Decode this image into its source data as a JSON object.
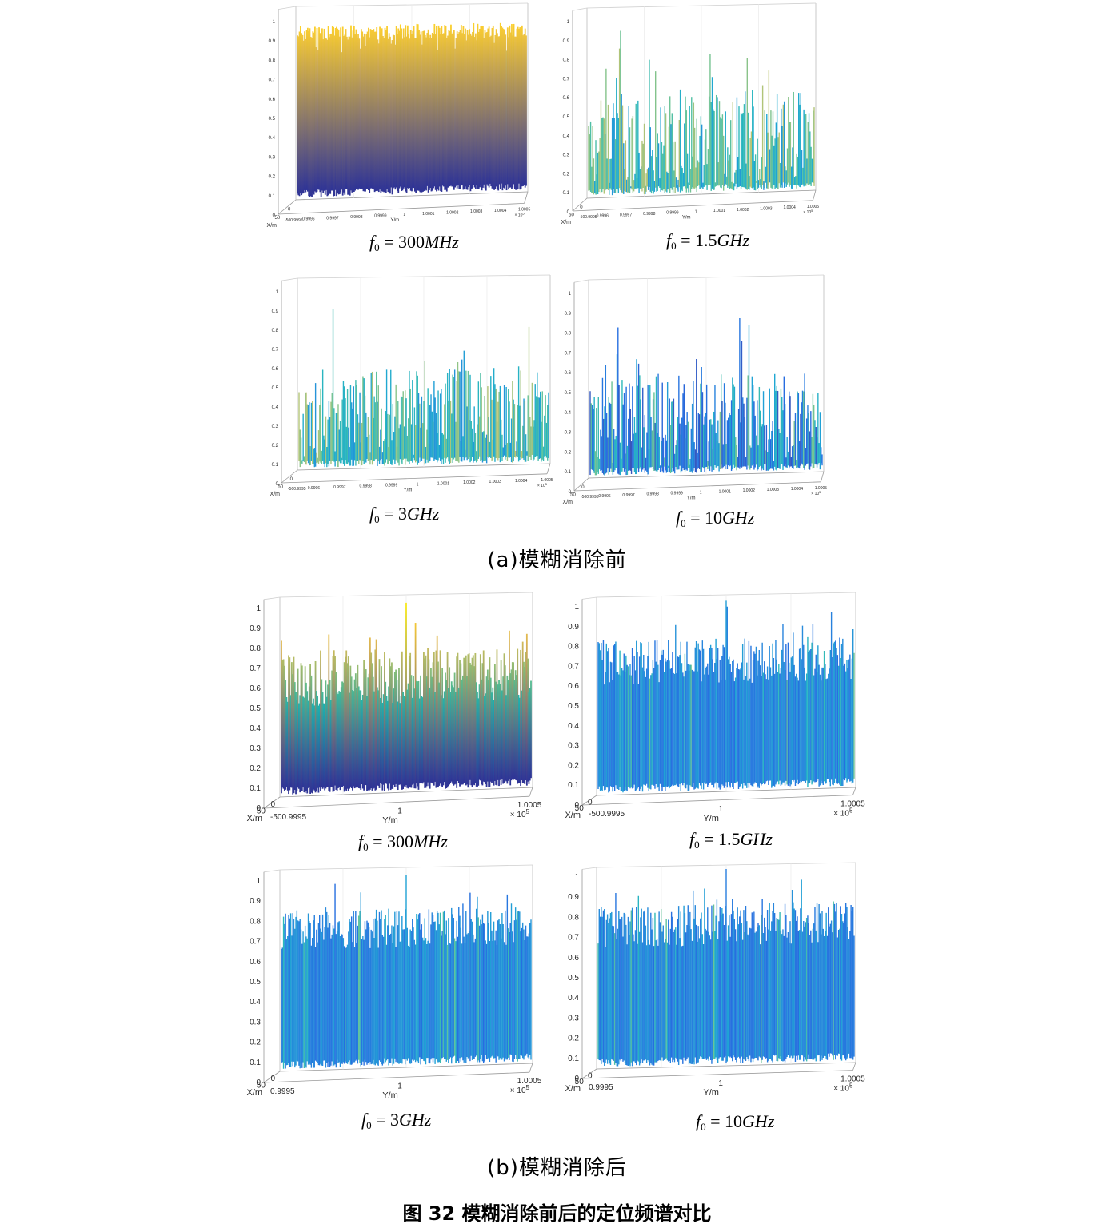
{
  "chart_data": [
    {
      "type": "surface3d",
      "group": "a",
      "freq_var": "f",
      "freq_sub": "0",
      "freq_value": "300",
      "freq_unit": "MHz",
      "xlabel": "X/m",
      "ylabel": "Y/m",
      "zlim": [
        0,
        1
      ],
      "z_ticks": [
        "0",
        "0.1",
        "0.2",
        "0.3",
        "0.4",
        "0.5",
        "0.6",
        "0.7",
        "0.8",
        "0.9",
        "1"
      ],
      "x_ticks": [
        "50",
        "0"
      ],
      "y_ticks": [
        "-500.9995",
        "0.9996",
        "0.9997",
        "0.9998",
        "0.9999",
        "1",
        "1.0001",
        "1.0002",
        "1.0003",
        "1.0004",
        "1.0005"
      ],
      "y_exponent": "× 10",
      "y_exp_power": "5",
      "floor": 0.08,
      "peak": 0.96,
      "peak_pos": null,
      "colormap": "parula-smooth"
    },
    {
      "type": "surface3d",
      "group": "a",
      "freq_var": "f",
      "freq_sub": "0",
      "freq_value": "1.5",
      "freq_unit": "GHz",
      "xlabel": "X/m",
      "ylabel": "Y/m",
      "zlim": [
        0,
        1
      ],
      "z_ticks": [
        "0",
        "0.1",
        "0.2",
        "0.3",
        "0.4",
        "0.5",
        "0.6",
        "0.7",
        "0.8",
        "0.9",
        "1"
      ],
      "x_ticks": [
        "50",
        "0"
      ],
      "y_ticks": [
        "-500.9995",
        "0.9996",
        "0.9997",
        "0.9998",
        "0.9999",
        "1",
        "1.0001",
        "1.0002",
        "1.0003",
        "1.0004",
        "1.0005"
      ],
      "y_exponent": "× 10",
      "y_exp_power": "5",
      "floor": 0.05,
      "peak": 0.92,
      "peak_pos": null,
      "colormap": "parula-noisy"
    },
    {
      "type": "surface3d",
      "group": "a",
      "freq_var": "f",
      "freq_sub": "0",
      "freq_value": "3",
      "freq_unit": "GHz",
      "xlabel": "X/m",
      "ylabel": "Y/m",
      "zlim": [
        0,
        1
      ],
      "z_ticks": [
        "0",
        "0.1",
        "0.2",
        "0.3",
        "0.4",
        "0.5",
        "0.6",
        "0.7",
        "0.8",
        "0.9",
        "1"
      ],
      "x_ticks": [
        "50",
        "0"
      ],
      "y_ticks": [
        "-500.9995",
        "0.9996",
        "0.9997",
        "0.9998",
        "0.9999",
        "1",
        "1.0001",
        "1.0002",
        "1.0003",
        "1.0004",
        "1.0005"
      ],
      "y_exponent": "× 10",
      "y_exp_power": "5",
      "floor": 0.05,
      "peak": 0.9,
      "peak_pos": null,
      "colormap": "parula-noisy"
    },
    {
      "type": "surface3d",
      "group": "a",
      "freq_var": "f",
      "freq_sub": "0",
      "freq_value": "10",
      "freq_unit": "GHz",
      "xlabel": "X/m",
      "ylabel": "Y/m",
      "zlim": [
        0,
        1
      ],
      "z_ticks": [
        "0",
        "0.1",
        "0.2",
        "0.3",
        "0.4",
        "0.5",
        "0.6",
        "0.7",
        "0.8",
        "0.9",
        "1"
      ],
      "x_ticks": [
        "50",
        "0"
      ],
      "y_ticks": [
        "-500.9995",
        "0.9996",
        "0.9997",
        "0.9998",
        "0.9999",
        "1",
        "1.0001",
        "1.0002",
        "1.0003",
        "1.0004",
        "1.0005"
      ],
      "y_exponent": "× 10",
      "y_exp_power": "5",
      "floor": 0.05,
      "peak": 0.9,
      "peak_pos": null,
      "colormap": "purple-noisy"
    },
    {
      "type": "surface3d",
      "group": "b",
      "freq_var": "f",
      "freq_sub": "0",
      "freq_value": "300",
      "freq_unit": "MHz",
      "xlabel": "X/m",
      "ylabel": "Y/m",
      "zlim": [
        0,
        1
      ],
      "z_ticks": [
        "0",
        "0.1",
        "0.2",
        "0.3",
        "0.4",
        "0.5",
        "0.6",
        "0.7",
        "0.8",
        "0.9",
        "1"
      ],
      "x_ticks": [
        "50",
        "0"
      ],
      "y_ticks": [
        "-500.9995",
        "1",
        "1.0005"
      ],
      "y_exponent": "× 10",
      "y_exp_power": "5",
      "floor": 0.45,
      "peak": 0.96,
      "peak_pos": 0.5,
      "colormap": "parula-smooth"
    },
    {
      "type": "surface3d",
      "group": "b",
      "freq_var": "f",
      "freq_sub": "0",
      "freq_value": "1.5",
      "freq_unit": "GHz",
      "xlabel": "X/m",
      "ylabel": "Y/m",
      "zlim": [
        0,
        1
      ],
      "z_ticks": [
        "0",
        "0.1",
        "0.2",
        "0.3",
        "0.4",
        "0.5",
        "0.6",
        "0.7",
        "0.8",
        "0.9",
        "1"
      ],
      "x_ticks": [
        "50",
        "0"
      ],
      "y_ticks": [
        "-500.9995",
        "1",
        "1.0005"
      ],
      "y_exponent": "× 10",
      "y_exp_power": "5",
      "floor": 0.55,
      "peak": 0.97,
      "peak_pos": 0.5,
      "colormap": "blue-noisy"
    },
    {
      "type": "surface3d",
      "group": "b",
      "freq_var": "f",
      "freq_sub": "0",
      "freq_value": "3",
      "freq_unit": "GHz",
      "xlabel": "X/m",
      "ylabel": "Y/m",
      "zlim": [
        0,
        1
      ],
      "z_ticks": [
        "0",
        "0.1",
        "0.2",
        "0.3",
        "0.4",
        "0.5",
        "0.6",
        "0.7",
        "0.8",
        "0.9",
        "1"
      ],
      "x_ticks": [
        "50",
        "0"
      ],
      "y_ticks": [
        "0.9995",
        "1",
        "1.0005"
      ],
      "y_exponent": "× 10",
      "y_exp_power": "5",
      "floor": 0.6,
      "peak": 0.96,
      "peak_pos": 0.5,
      "colormap": "blue-noisy"
    },
    {
      "type": "surface3d",
      "group": "b",
      "freq_var": "f",
      "freq_sub": "0",
      "freq_value": "10",
      "freq_unit": "GHz",
      "xlabel": "X/m",
      "ylabel": "Y/m",
      "zlim": [
        0,
        1
      ],
      "z_ticks": [
        "0",
        "0.1",
        "0.2",
        "0.3",
        "0.4",
        "0.5",
        "0.6",
        "0.7",
        "0.8",
        "0.9",
        "1"
      ],
      "x_ticks": [
        "50",
        "0"
      ],
      "y_ticks": [
        "0.9995",
        "1",
        "1.0005"
      ],
      "y_exponent": "× 10",
      "y_exp_power": "5",
      "floor": 0.6,
      "peak": 0.98,
      "peak_pos": 0.5,
      "colormap": "blue-noisy"
    }
  ],
  "captions": {
    "a": "(a)模糊消除前",
    "b": "(b)模糊消除后",
    "figure": "图 32 模糊消除前后的定位频谱对比"
  }
}
